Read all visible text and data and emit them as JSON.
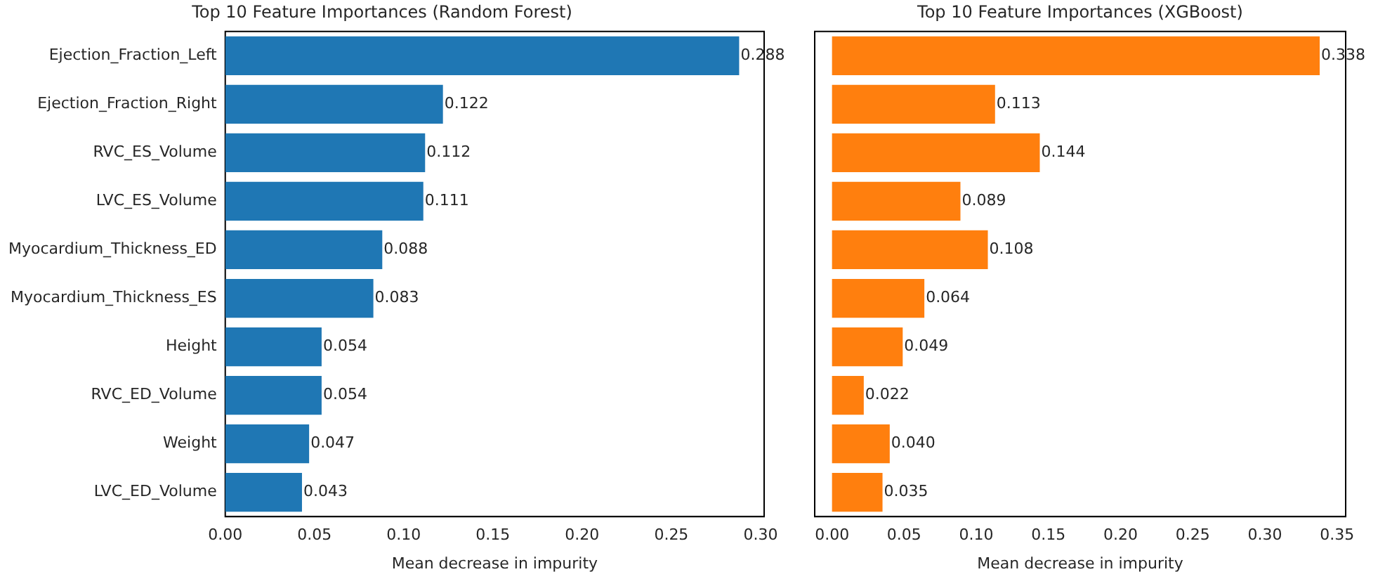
{
  "chart_data": [
    {
      "type": "bar",
      "orientation": "horizontal",
      "title": "Top 10 Feature Importances (Random Forest)",
      "xlabel": "Mean decrease in impurity",
      "categories": [
        "Ejection_Fraction_Left",
        "Ejection_Fraction_Right",
        "RVC_ES_Volume",
        "LVC_ES_Volume",
        "Myocardium_Thickness_ED",
        "Myocardium_Thickness_ES",
        "Height",
        "RVC_ED_Volume",
        "Weight",
        "LVC_ED_Volume"
      ],
      "values": [
        0.288,
        0.122,
        0.112,
        0.111,
        0.088,
        0.083,
        0.054,
        0.054,
        0.047,
        0.043
      ],
      "color": "#1f77b4",
      "xlim": [
        0,
        0.302
      ],
      "xticks": [
        {
          "value": 0,
          "label": "0.00"
        },
        {
          "value": 0.05,
          "label": "0.05"
        },
        {
          "value": 0.1,
          "label": "0.10"
        },
        {
          "value": 0.15,
          "label": "0.15"
        },
        {
          "value": 0.2,
          "label": "0.20"
        },
        {
          "value": 0.25,
          "label": "0.25"
        },
        {
          "value": 0.3,
          "label": "0.30"
        }
      ],
      "value_labels": [
        "0.288",
        "0.122",
        "0.112",
        "0.111",
        "0.088",
        "0.083",
        "0.054",
        "0.054",
        "0.047",
        "0.043"
      ],
      "grid": false,
      "legend": false
    },
    {
      "type": "bar",
      "orientation": "horizontal",
      "title": "Top 10 Feature Importances (XGBoost)",
      "xlabel": "Mean decrease in impurity",
      "categories": [
        null,
        null,
        null,
        null,
        null,
        null,
        null,
        null,
        null,
        null
      ],
      "values": [
        0.338,
        0.113,
        0.144,
        0.089,
        0.108,
        0.064,
        0.049,
        0.022,
        0.04,
        0.035
      ],
      "color": "#ff7f0e",
      "xlim": [
        -0.012,
        0.356
      ],
      "xticks": [
        {
          "value": 0,
          "label": "0.00"
        },
        {
          "value": 0.05,
          "label": "0.05"
        },
        {
          "value": 0.1,
          "label": "0.10"
        },
        {
          "value": 0.15,
          "label": "0.15"
        },
        {
          "value": 0.2,
          "label": "0.20"
        },
        {
          "value": 0.25,
          "label": "0.25"
        },
        {
          "value": 0.3,
          "label": "0.30"
        },
        {
          "value": 0.35,
          "label": "0.35"
        }
      ],
      "value_labels": [
        "0.338",
        "0.113",
        "0.144",
        "0.089",
        "0.108",
        "0.064",
        "0.049",
        "0.022",
        "0.040",
        "0.035"
      ],
      "tick_labels": "x",
      "grid": false,
      "legend": false
    }
  ]
}
